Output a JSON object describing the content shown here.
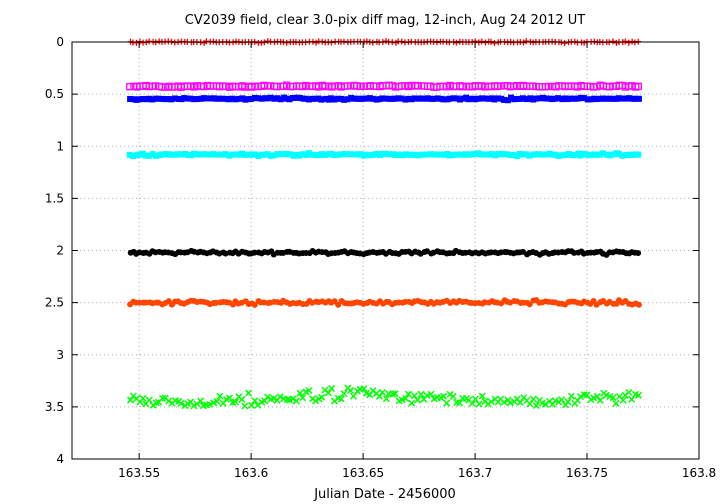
{
  "chart_data": {
    "type": "scatter",
    "title": "CV2039 field, clear 3.0-pix diff mag, 12-inch, Aug 24 2012 UT",
    "xlabel": "Julian Date - 2456000",
    "ylabel": "",
    "xlim": [
      163.52,
      163.8
    ],
    "ylim": [
      0,
      4
    ],
    "y_inverted": true,
    "grid": true,
    "x_ticks": [
      "163.55",
      "163.6",
      "163.65",
      "163.7",
      "163.75",
      "163.8"
    ],
    "y_ticks": [
      "0",
      "0.5",
      "1",
      "1.5",
      "2",
      "2.5",
      "3",
      "3.5",
      "4"
    ],
    "x_range_data": [
      163.546,
      163.773
    ],
    "points_per_series": 160,
    "series": [
      {
        "color": "#ff0000",
        "marker": "plus",
        "mean": 0.0,
        "scatter": 0.008
      },
      {
        "color": "#ff00ff",
        "marker": "open-square",
        "mean": 0.425,
        "scatter": 0.01
      },
      {
        "color": "#0000ff",
        "marker": "filled-square",
        "mean": 0.545,
        "scatter": 0.01
      },
      {
        "color": "#00ffff",
        "marker": "filled-square",
        "mean": 1.08,
        "scatter": 0.012
      },
      {
        "color": "#000000",
        "marker": "filled-circle",
        "mean": 2.02,
        "scatter": 0.015
      },
      {
        "color": "#ff4500",
        "marker": "filled-circle",
        "mean": 2.5,
        "scatter": 0.02
      },
      {
        "color": "#00ff00",
        "marker": "cross",
        "mean": 3.44,
        "scatter": 0.06
      }
    ]
  }
}
